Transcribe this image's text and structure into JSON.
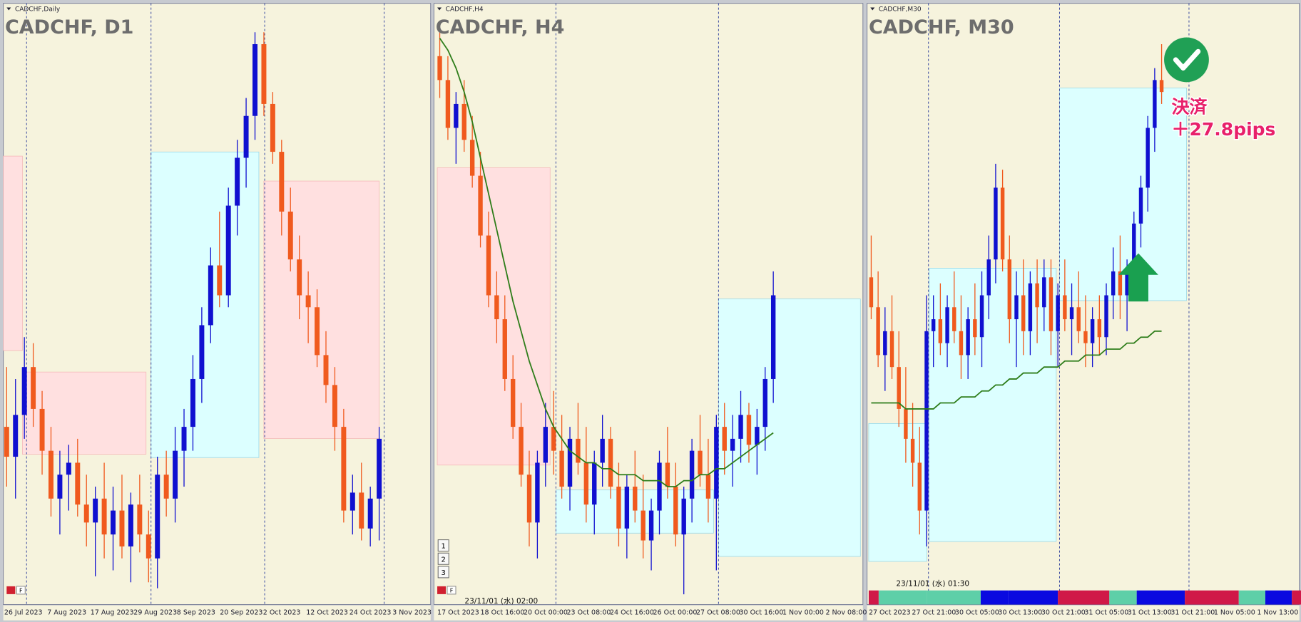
{
  "chart_data": [
    {
      "type": "candlestick",
      "title": "CADCHF, D1",
      "subtitle": "CADCHF,Daily",
      "controls": [
        "F"
      ],
      "ylim": [
        0,
        100
      ],
      "categories": [
        "26 Jul 2023",
        "7 Aug 2023",
        "17 Aug 2023",
        "29 Aug 2023",
        "8 Sep 2023",
        "20 Sep 2023",
        "2 Oct 2023",
        "12 Oct 2023",
        "24 Oct 2023",
        "3 Nov 2023"
      ],
      "candles": [
        [
          30,
          40,
          20,
          25
        ],
        [
          25,
          38,
          18,
          32
        ],
        [
          32,
          45,
          28,
          40
        ],
        [
          40,
          44,
          30,
          33
        ],
        [
          33,
          36,
          22,
          26
        ],
        [
          26,
          30,
          15,
          18
        ],
        [
          18,
          26,
          12,
          22
        ],
        [
          22,
          27,
          16,
          24
        ],
        [
          24,
          28,
          15,
          17
        ],
        [
          17,
          22,
          10,
          14
        ],
        [
          14,
          20,
          5,
          18
        ],
        [
          18,
          24,
          8,
          12
        ],
        [
          12,
          20,
          6,
          16
        ],
        [
          16,
          22,
          8,
          10
        ],
        [
          10,
          19,
          4,
          17
        ],
        [
          17,
          22,
          9,
          12
        ],
        [
          12,
          16,
          4,
          8
        ],
        [
          8,
          25,
          3,
          22
        ],
        [
          22,
          26,
          15,
          18
        ],
        [
          18,
          30,
          14,
          26
        ],
        [
          26,
          33,
          20,
          30
        ],
        [
          30,
          42,
          26,
          38
        ],
        [
          38,
          50,
          34,
          47
        ],
        [
          47,
          60,
          44,
          57
        ],
        [
          57,
          66,
          50,
          52
        ],
        [
          52,
          70,
          50,
          67
        ],
        [
          67,
          78,
          62,
          75
        ],
        [
          75,
          85,
          70,
          82
        ],
        [
          82,
          96,
          78,
          94
        ],
        [
          94,
          96,
          82,
          84
        ],
        [
          84,
          86,
          74,
          76
        ],
        [
          76,
          78,
          62,
          66
        ],
        [
          66,
          70,
          56,
          58
        ],
        [
          58,
          62,
          48,
          52
        ],
        [
          52,
          56,
          44,
          50
        ],
        [
          50,
          53,
          40,
          42
        ],
        [
          42,
          46,
          34,
          37
        ],
        [
          37,
          40,
          26,
          30
        ],
        [
          30,
          33,
          14,
          16
        ],
        [
          16,
          22,
          12,
          19
        ],
        [
          19,
          24,
          11,
          13
        ],
        [
          13,
          20,
          10,
          18
        ],
        [
          18,
          30,
          11,
          28
        ]
      ]
    },
    {
      "type": "candlestick",
      "title": "CADCHF, H4",
      "subtitle": "CADCHF,H4",
      "controls": [
        "F"
      ],
      "buttons": [
        "1",
        "2",
        "3"
      ],
      "cursor_time": "23/11/01 (水) 02:00",
      "ylim": [
        0,
        100
      ],
      "categories": [
        "17 Oct 2023",
        "18 Oct 16:00",
        "20 Oct 00:00",
        "23 Oct 08:00",
        "24 Oct 16:00",
        "26 Oct 00:00",
        "27 Oct 08:00",
        "30 Oct 16:00",
        "1 Nov 00:00",
        "2 Nov 08:00"
      ],
      "candles": [
        [
          92,
          96,
          85,
          88
        ],
        [
          88,
          92,
          78,
          80
        ],
        [
          80,
          86,
          74,
          84
        ],
        [
          84,
          88,
          76,
          78
        ],
        [
          78,
          82,
          70,
          72
        ],
        [
          72,
          76,
          60,
          62
        ],
        [
          62,
          66,
          50,
          52
        ],
        [
          52,
          56,
          44,
          48
        ],
        [
          48,
          52,
          36,
          38
        ],
        [
          38,
          42,
          28,
          30
        ],
        [
          30,
          34,
          20,
          22
        ],
        [
          22,
          26,
          10,
          14
        ],
        [
          14,
          26,
          8,
          24
        ],
        [
          24,
          34,
          20,
          30
        ],
        [
          30,
          36,
          22,
          26
        ],
        [
          26,
          32,
          18,
          20
        ],
        [
          20,
          30,
          16,
          28
        ],
        [
          28,
          34,
          22,
          24
        ],
        [
          24,
          30,
          14,
          17
        ],
        [
          17,
          26,
          12,
          24
        ],
        [
          24,
          32,
          20,
          28
        ],
        [
          28,
          30,
          18,
          20
        ],
        [
          20,
          24,
          10,
          13
        ],
        [
          13,
          22,
          8,
          20
        ],
        [
          20,
          26,
          14,
          16
        ],
        [
          16,
          22,
          8,
          11
        ],
        [
          11,
          18,
          6,
          16
        ],
        [
          16,
          26,
          12,
          24
        ],
        [
          24,
          30,
          18,
          20
        ],
        [
          20,
          24,
          10,
          12
        ],
        [
          12,
          20,
          2,
          18
        ],
        [
          18,
          28,
          14,
          26
        ],
        [
          26,
          32,
          20,
          22
        ],
        [
          22,
          28,
          14,
          18
        ],
        [
          18,
          32,
          6,
          30
        ],
        [
          30,
          34,
          22,
          26
        ],
        [
          26,
          32,
          20,
          28
        ],
        [
          28,
          36,
          24,
          32
        ],
        [
          32,
          34,
          24,
          27
        ],
        [
          27,
          33,
          22,
          30
        ],
        [
          30,
          40,
          26,
          38
        ],
        [
          38,
          56,
          34,
          52
        ]
      ],
      "ma": [
        95,
        93,
        90,
        86,
        81,
        75,
        69,
        63,
        57,
        51,
        46,
        41,
        37,
        33,
        30,
        28,
        26,
        25,
        24,
        24,
        23,
        23,
        22,
        22,
        22,
        21,
        21,
        21,
        20,
        20,
        21,
        21,
        22,
        22,
        23,
        23,
        24,
        25,
        26,
        27,
        28,
        29
      ],
      "ma_color": "#2e7d1a"
    },
    {
      "type": "candlestick",
      "title": "CADCHF, M30",
      "subtitle": "CADCHF,M30",
      "cursor_time": "23/11/01 (水) 01:30",
      "ylim": [
        0,
        100
      ],
      "annotations": [
        "決済",
        "＋27.8pips"
      ],
      "categories": [
        "27 Oct 2023",
        "27 Oct 21:00",
        "30 Oct 05:00",
        "30 Oct 13:00",
        "30 Oct 21:00",
        "31 Oct 05:00",
        "31 Oct 13:00",
        "31 Oct 21:00",
        "1 Nov 05:00",
        "1 Nov 13:00"
      ],
      "candles": [
        [
          55,
          62,
          48,
          50
        ],
        [
          50,
          56,
          40,
          42
        ],
        [
          42,
          50,
          36,
          46
        ],
        [
          46,
          52,
          38,
          40
        ],
        [
          40,
          46,
          30,
          33
        ],
        [
          33,
          40,
          24,
          28
        ],
        [
          28,
          34,
          20,
          24
        ],
        [
          24,
          30,
          12,
          16
        ],
        [
          16,
          52,
          10,
          46
        ],
        [
          46,
          52,
          40,
          48
        ],
        [
          48,
          54,
          42,
          44
        ],
        [
          44,
          52,
          40,
          50
        ],
        [
          50,
          56,
          44,
          46
        ],
        [
          46,
          52,
          38,
          42
        ],
        [
          42,
          50,
          38,
          48
        ],
        [
          48,
          54,
          42,
          45
        ],
        [
          45,
          56,
          40,
          52
        ],
        [
          52,
          62,
          48,
          58
        ],
        [
          58,
          74,
          54,
          70
        ],
        [
          70,
          73,
          56,
          58
        ],
        [
          58,
          62,
          44,
          48
        ],
        [
          48,
          56,
          40,
          52
        ],
        [
          52,
          58,
          42,
          46
        ],
        [
          46,
          56,
          42,
          54
        ],
        [
          54,
          58,
          44,
          50
        ],
        [
          50,
          58,
          46,
          55
        ],
        [
          55,
          58,
          42,
          46
        ],
        [
          46,
          54,
          40,
          52
        ],
        [
          52,
          58,
          46,
          48
        ],
        [
          48,
          54,
          42,
          50
        ],
        [
          50,
          56,
          44,
          46
        ],
        [
          46,
          52,
          40,
          44
        ],
        [
          44,
          50,
          40,
          48
        ],
        [
          48,
          52,
          42,
          45
        ],
        [
          45,
          54,
          42,
          52
        ],
        [
          52,
          60,
          48,
          56
        ],
        [
          56,
          62,
          48,
          52
        ],
        [
          52,
          58,
          46,
          56
        ],
        [
          56,
          66,
          52,
          64
        ],
        [
          64,
          72,
          60,
          70
        ],
        [
          70,
          82,
          66,
          80
        ],
        [
          80,
          90,
          76,
          88
        ],
        [
          88,
          94,
          84,
          86
        ]
      ],
      "ma": [
        34,
        34,
        34,
        34,
        34,
        33,
        33,
        33,
        33,
        33,
        34,
        34,
        34,
        35,
        35,
        35,
        36,
        36,
        37,
        37,
        38,
        38,
        39,
        39,
        39,
        40,
        40,
        40,
        41,
        41,
        41,
        42,
        42,
        42,
        43,
        43,
        43,
        44,
        44,
        45,
        45,
        46,
        46
      ],
      "ma_color": "#2e7d1a"
    }
  ]
}
